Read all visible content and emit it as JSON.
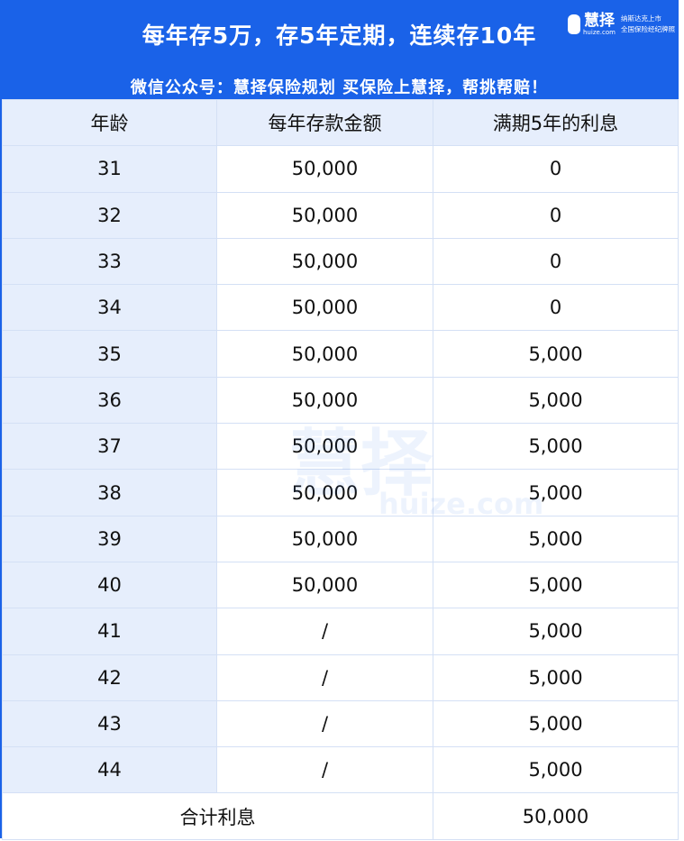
{
  "header": {
    "title": "每年存5万，存5年定期，连续存10年",
    "subtitle": "微信公众号：慧择保险规划  买保险上慧择，帮挑帮赔！",
    "logo": {
      "name": "慧择",
      "domain": "huize.com",
      "tag1": "纳斯达克上市",
      "tag2": "全国保险经纪牌照"
    },
    "brand_color": "#1a62e8"
  },
  "table": {
    "columns": [
      "年龄",
      "每年存款金额",
      "满期5年的利息"
    ],
    "rows": [
      {
        "age": "31",
        "deposit": "50,000",
        "interest": "0"
      },
      {
        "age": "32",
        "deposit": "50,000",
        "interest": "0"
      },
      {
        "age": "33",
        "deposit": "50,000",
        "interest": "0"
      },
      {
        "age": "34",
        "deposit": "50,000",
        "interest": "0"
      },
      {
        "age": "35",
        "deposit": "50,000",
        "interest": "5,000"
      },
      {
        "age": "36",
        "deposit": "50,000",
        "interest": "5,000"
      },
      {
        "age": "37",
        "deposit": "50,000",
        "interest": "5,000"
      },
      {
        "age": "38",
        "deposit": "50,000",
        "interest": "5,000"
      },
      {
        "age": "39",
        "deposit": "50,000",
        "interest": "5,000"
      },
      {
        "age": "40",
        "deposit": "50,000",
        "interest": "5,000"
      },
      {
        "age": "41",
        "deposit": "/",
        "interest": "5,000"
      },
      {
        "age": "42",
        "deposit": "/",
        "interest": "5,000"
      },
      {
        "age": "43",
        "deposit": "/",
        "interest": "5,000"
      },
      {
        "age": "44",
        "deposit": "/",
        "interest": "5,000"
      }
    ],
    "total_label": "合计利息",
    "total_value": "50,000"
  },
  "watermark": {
    "text": "慧择",
    "domain": "huize.com"
  }
}
